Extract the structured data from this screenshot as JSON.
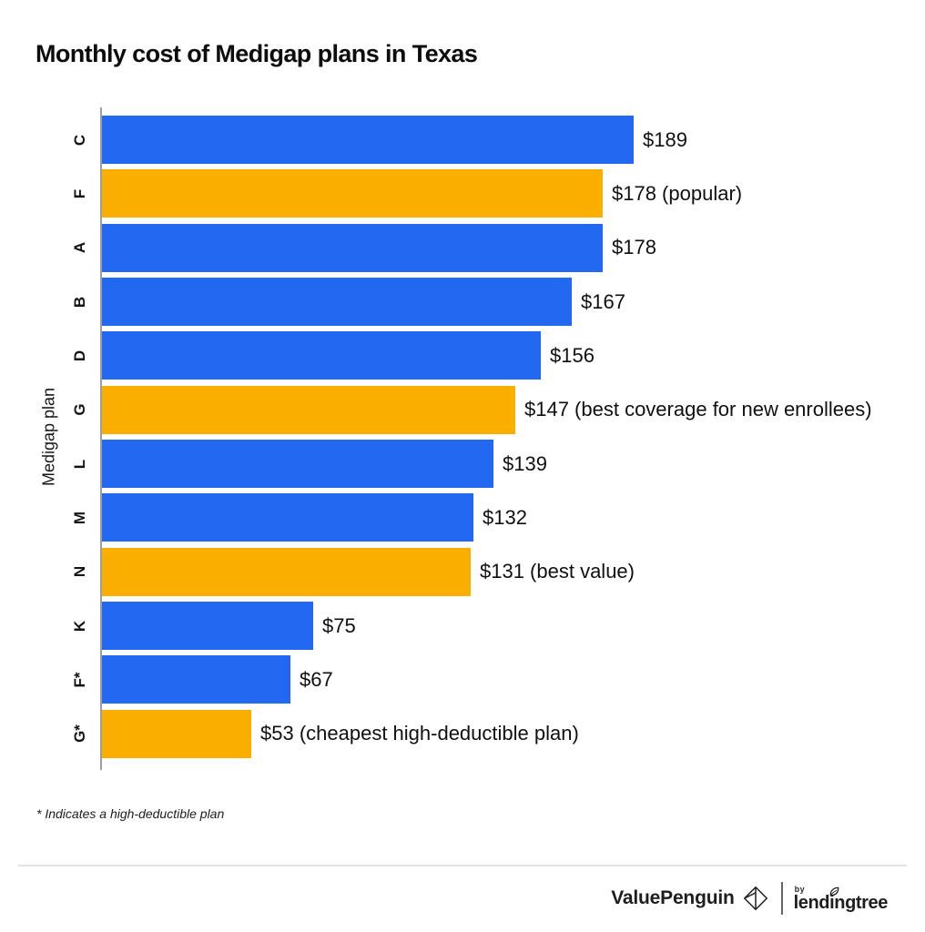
{
  "chart_data": {
    "type": "bar",
    "orientation": "horizontal",
    "title": "Monthly cost of Medigap plans in Texas",
    "ylabel": "Medigap plan",
    "xlabel": "",
    "grid": false,
    "legend": false,
    "x_axis_labels_visible": false,
    "xlim": [
      0,
      200
    ],
    "unit": "USD per month",
    "categories": [
      "C",
      "F",
      "A",
      "B",
      "D",
      "G",
      "L",
      "M",
      "N",
      "K",
      "F*",
      "G*"
    ],
    "values": [
      189,
      178,
      178,
      167,
      156,
      147,
      139,
      132,
      131,
      75,
      67,
      53
    ],
    "bar_labels": [
      "$189",
      "$178 (popular)",
      "$178",
      "$167",
      "$156",
      "$147 (best coverage for new enrollees)",
      "$139",
      "$132",
      "$131 (best value)",
      "$75",
      "$67",
      "$53 (cheapest high-deductible plan)"
    ],
    "bar_colors": [
      "#2368F0",
      "#FAAE00",
      "#2368F0",
      "#2368F0",
      "#2368F0",
      "#FAAE00",
      "#2368F0",
      "#2368F0",
      "#FAAE00",
      "#2368F0",
      "#2368F0",
      "#FAAE00"
    ],
    "colors": {
      "default": "#2368F0",
      "highlighted": "#FAAE00",
      "axis_line": "#9e9e9e"
    }
  },
  "footnote": "* Indicates a high-deductible plan",
  "footer": {
    "brand": "ValuePenguin",
    "byline": "by",
    "partner": "lendingtree"
  }
}
